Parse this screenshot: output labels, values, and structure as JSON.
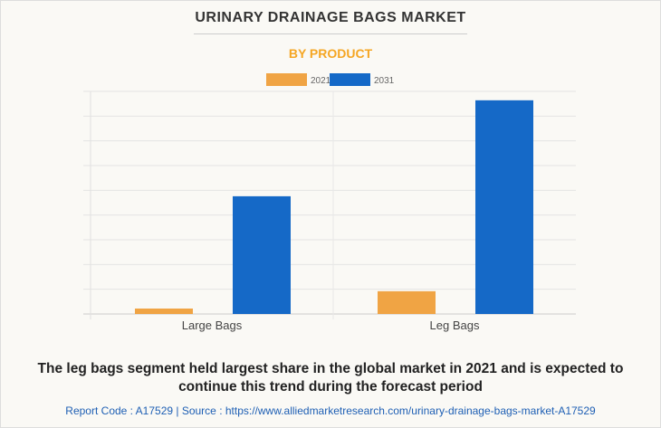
{
  "title": "URINARY DRAINAGE BAGS MARKET",
  "subtitle": "BY PRODUCT",
  "chart_data": {
    "type": "bar",
    "categories": [
      "Large Bags",
      "Leg Bags"
    ],
    "series": [
      {
        "name": "2021",
        "color": "#f0a444",
        "values": [
          0.22,
          0.92
        ]
      },
      {
        "name": "2031",
        "color": "#1569c7",
        "values": [
          4.76,
          8.64
        ]
      }
    ],
    "ylim": [
      0,
      9
    ],
    "grid": true,
    "legend": "top-center",
    "xlabel": "",
    "ylabel": ""
  },
  "caption": "The leg bags segment held largest share in the global market in 2021 and is expected to continue this trend during the forecast period",
  "footer": "Report Code : A17529  |  Source : https://www.alliedmarketresearch.com/urinary-drainage-bags-market-A17529"
}
